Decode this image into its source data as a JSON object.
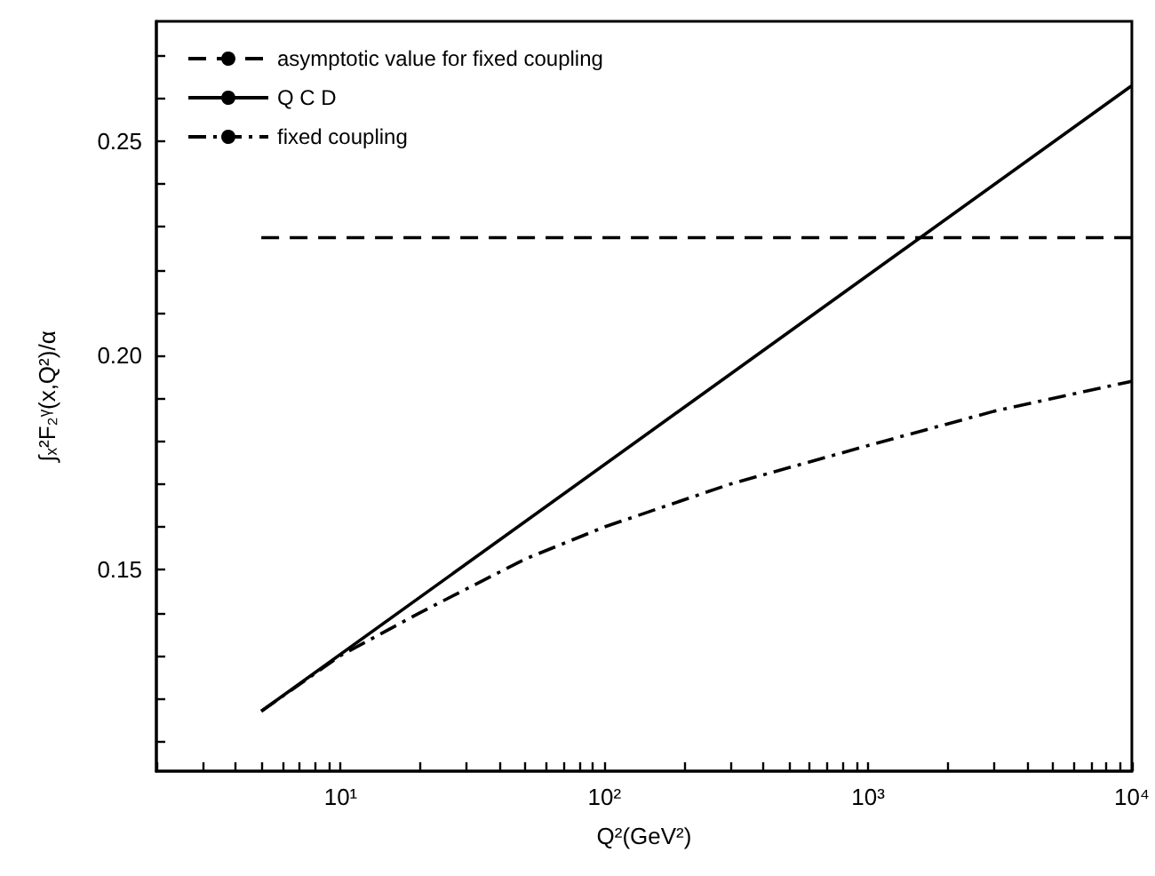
{
  "chart_data": {
    "type": "line",
    "xlabel": "Q²(GeV²)",
    "ylabel": "∫ₓ²F₂ᵞ(x,Q²)/α",
    "log": "x",
    "grid": false,
    "legend": "top left",
    "marker": "none",
    "xlim": [
      2,
      10000
    ],
    "xticks": [
      {
        "value": 2,
        "label": null
      },
      {
        "value": 3,
        "label": null
      },
      {
        "value": 4,
        "label": null
      },
      {
        "value": 5,
        "label": null
      },
      {
        "value": 6,
        "label": null
      },
      {
        "value": 7,
        "label": null
      },
      {
        "value": 8,
        "label": null
      },
      {
        "value": 9,
        "label": null
      },
      {
        "value": 10,
        "label": "10¹"
      },
      {
        "value": 20,
        "label": null
      },
      {
        "value": 30,
        "label": null
      },
      {
        "value": 40,
        "label": null
      },
      {
        "value": 50,
        "label": null
      },
      {
        "value": 60,
        "label": null
      },
      {
        "value": 70,
        "label": null
      },
      {
        "value": 80,
        "label": null
      },
      {
        "value": 90,
        "label": null
      },
      {
        "value": 100,
        "label": "10²"
      },
      {
        "value": 200,
        "label": null
      },
      {
        "value": 300,
        "label": null
      },
      {
        "value": 400,
        "label": null
      },
      {
        "value": 500,
        "label": null
      },
      {
        "value": 600,
        "label": null
      },
      {
        "value": 700,
        "label": null
      },
      {
        "value": 800,
        "label": null
      },
      {
        "value": 900,
        "label": null
      },
      {
        "value": 1000,
        "label": "10³"
      },
      {
        "value": 2000,
        "label": null
      },
      {
        "value": 3000,
        "label": null
      },
      {
        "value": 4000,
        "label": null
      },
      {
        "value": 5000,
        "label": null
      },
      {
        "value": 6000,
        "label": null
      },
      {
        "value": 7000,
        "label": null
      },
      {
        "value": 8000,
        "label": null
      },
      {
        "value": 9000,
        "label": null
      },
      {
        "value": 10000,
        "label": "10⁴"
      }
    ],
    "ylim": [
      0.103,
      0.278
    ],
    "yticks": [
      {
        "value": 0.11,
        "label": null
      },
      {
        "value": 0.12,
        "label": null
      },
      {
        "value": 0.13,
        "label": null
      },
      {
        "value": 0.14,
        "label": null
      },
      {
        "value": 0.15,
        "label": "0.15"
      },
      {
        "value": 0.16,
        "label": null
      },
      {
        "value": 0.17,
        "label": null
      },
      {
        "value": 0.18,
        "label": null
      },
      {
        "value": 0.19,
        "label": null
      },
      {
        "value": 0.2,
        "label": "0.20"
      },
      {
        "value": 0.21,
        "label": null
      },
      {
        "value": 0.22,
        "label": null
      },
      {
        "value": 0.23,
        "label": null
      },
      {
        "value": 0.24,
        "label": null
      },
      {
        "value": 0.25,
        "label": "0.25"
      },
      {
        "value": 0.26,
        "label": null
      },
      {
        "value": 0.27,
        "label": null
      }
    ],
    "series": [
      {
        "name": "asymptotic value for fixed coupling",
        "color": "#000000",
        "line_style": "dashed",
        "x": [
          5,
          10000
        ],
        "values": [
          0.2275,
          0.2275
        ]
      },
      {
        "name": "Q C D",
        "color": "#000000",
        "line_style": "solid",
        "x": [
          5,
          10000
        ],
        "values": [
          0.117,
          0.263
        ]
      },
      {
        "name": "fixed coupling",
        "color": "#000000",
        "line_style": "dashed",
        "x": [
          5,
          10,
          20,
          50,
          100,
          300,
          1000,
          3000,
          10000
        ],
        "values": [
          0.117,
          0.13,
          0.14,
          0.1525,
          0.16,
          0.17,
          0.179,
          0.187,
          0.194
        ]
      }
    ]
  }
}
